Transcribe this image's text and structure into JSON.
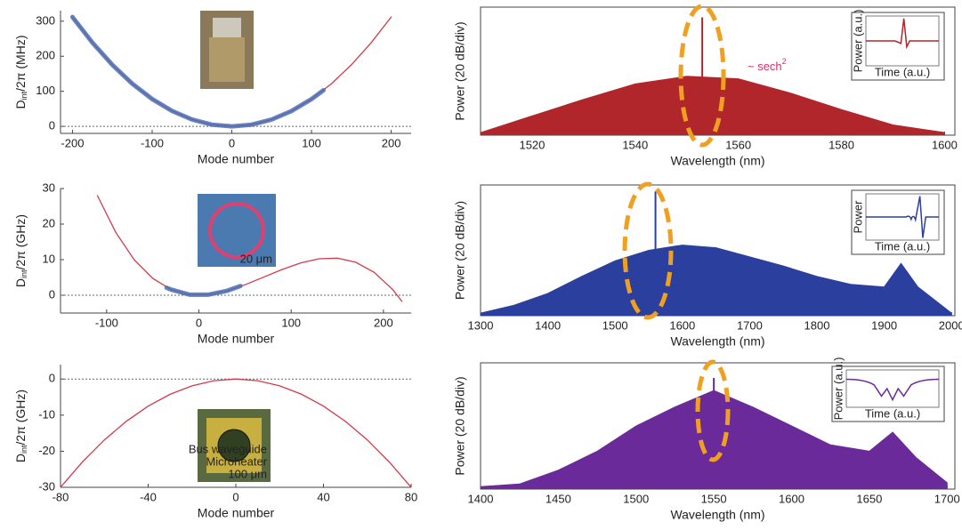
{
  "chart_data": [
    {
      "type": "line",
      "x_label": "Mode number",
      "y_label": {
        "text": "D",
        "sub": "int",
        "after": "/2π (MHz)"
      },
      "xlim": [
        -215,
        225
      ],
      "ylim": [
        -20,
        330
      ],
      "xticks": [
        -200,
        -100,
        0,
        100,
        200
      ],
      "yticks": [
        0,
        100,
        200,
        300
      ],
      "hline": 0,
      "series": [
        {
          "color": "#d43a4a",
          "style": "line",
          "x": [
            -200,
            -175,
            -150,
            -125,
            -100,
            -75,
            -50,
            -25,
            0,
            25,
            50,
            75,
            100,
            125,
            150,
            175,
            200
          ],
          "values": [
            312,
            238.9,
            175.5,
            121.9,
            78,
            43.9,
            19.5,
            4.9,
            0,
            4.9,
            19.5,
            43.9,
            78,
            121.9,
            175.5,
            238.9,
            312
          ]
        },
        {
          "color": "#4a6fb5",
          "style": "dots",
          "x": [
            -200,
            -175,
            -150,
            -125,
            -100,
            -75,
            -50,
            -25,
            0,
            25,
            50,
            75,
            100,
            115
          ],
          "values": [
            312,
            238.9,
            175.5,
            121.9,
            78,
            43.9,
            19.5,
            4.9,
            0,
            4.9,
            19.5,
            43.9,
            78,
            103
          ]
        }
      ],
      "inset": {
        "labels": []
      }
    },
    {
      "type": "area",
      "x_label": "Wavelength (nm)",
      "y_label": "Power (20 dB/div)",
      "xlim": [
        1510,
        1602
      ],
      "ylim": [
        0,
        100
      ],
      "xticks": [
        1520,
        1540,
        1560,
        1580,
        1600
      ],
      "color": "#b0262b",
      "series": [
        {
          "color": "#b0262b",
          "x": [
            1510,
            1520,
            1530,
            1540,
            1550,
            1560,
            1570,
            1580,
            1590,
            1600
          ],
          "values": [
            2,
            15,
            28,
            40,
            46,
            44,
            33,
            20,
            8,
            2
          ]
        }
      ],
      "pump": {
        "x": 1553,
        "value": 92
      },
      "annotation": {
        "text": "~ sech",
        "sup": "2"
      },
      "inset": {
        "y_label": "Power (a.u.)",
        "x_label": "Time (a.u.)"
      }
    },
    {
      "type": "line",
      "x_label": "Mode number",
      "y_label": {
        "text": "D",
        "sub": "int",
        "after": "/2π (GHz)"
      },
      "xlim": [
        -150,
        230
      ],
      "ylim": [
        -5,
        30
      ],
      "xticks": [
        -100,
        0,
        100,
        200
      ],
      "yticks": [
        0,
        10,
        20,
        30
      ],
      "hline": 0,
      "series": [
        {
          "color": "#d43a4a",
          "style": "line",
          "x": [
            -110,
            -90,
            -70,
            -50,
            -30,
            -10,
            10,
            30,
            50,
            70,
            90,
            110,
            130,
            150,
            170,
            190,
            210,
            220
          ],
          "values": [
            28.0,
            17.6,
            9.96,
            4.73,
            1.57,
            0.16,
            0.15,
            1.19,
            2.94,
            5.07,
            7.22,
            9.06,
            10.24,
            10.43,
            9.28,
            6.43,
            1.57,
            -1.72
          ]
        },
        {
          "color": "#4a6fb5",
          "style": "dots",
          "x": [
            -35,
            -30,
            -10,
            10,
            30,
            45
          ],
          "values": [
            2.1,
            1.57,
            0.16,
            0.15,
            1.19,
            2.6
          ]
        }
      ],
      "inset": {
        "labels": [
          "20 μm"
        ]
      }
    },
    {
      "type": "area",
      "x_label": "Wavelength (nm)",
      "y_label": "Power (20 dB/div)",
      "xlim": [
        1300,
        2005
      ],
      "ylim": [
        0,
        100
      ],
      "xticks": [
        1300,
        1400,
        1500,
        1600,
        1700,
        1800,
        1900,
        2000
      ],
      "color": "#2b3f9e",
      "series": [
        {
          "color": "#2b3f9e",
          "x": [
            1300,
            1350,
            1400,
            1450,
            1500,
            1550,
            1600,
            1650,
            1700,
            1750,
            1800,
            1850,
            1900,
            1925,
            1950,
            2000
          ],
          "values": [
            2,
            8,
            17,
            30,
            42,
            50,
            54,
            52,
            45,
            38,
            30,
            24,
            22,
            40,
            22,
            2
          ]
        }
      ],
      "pump": {
        "x": 1560,
        "value": 95
      },
      "inset": {
        "y_label": "Power",
        "x_label": "Time (a.u.)"
      }
    },
    {
      "type": "line",
      "x_label": "Mode number",
      "y_label": {
        "text": "D",
        "sub": "int",
        "after": "/2π (GHz)"
      },
      "xlim": [
        -80,
        80
      ],
      "ylim": [
        -30,
        4
      ],
      "xticks": [
        -80,
        -40,
        0,
        40,
        80
      ],
      "yticks": [
        0,
        -10,
        -20,
        -30
      ],
      "hline": 0,
      "series": [
        {
          "color": "#d43a4a",
          "style": "line",
          "x": [
            -80,
            -70,
            -60,
            -50,
            -40,
            -30,
            -20,
            -10,
            0,
            10,
            20,
            30,
            40,
            50,
            60,
            70,
            80
          ],
          "values": [
            -30,
            -22.97,
            -16.88,
            -11.72,
            -7.5,
            -4.22,
            -1.88,
            -0.47,
            0,
            -0.47,
            -1.88,
            -4.22,
            -7.5,
            -11.72,
            -16.88,
            -22.97,
            -30
          ]
        }
      ],
      "inset": {
        "labels": [
          "Bus waveguide",
          "Microheater",
          "100 μm"
        ]
      }
    },
    {
      "type": "area",
      "x_label": "Wavelength (nm)",
      "y_label": "Power (20 dB/div)",
      "xlim": [
        1400,
        1705
      ],
      "ylim": [
        0,
        100
      ],
      "xticks": [
        1400,
        1450,
        1500,
        1550,
        1600,
        1650,
        1700
      ],
      "color": "#6a2a9a",
      "series": [
        {
          "color": "#6a2a9a",
          "x": [
            1400,
            1425,
            1450,
            1475,
            1500,
            1525,
            1550,
            1575,
            1600,
            1625,
            1650,
            1665,
            1680,
            1700
          ],
          "values": [
            2,
            4,
            15,
            30,
            50,
            65,
            78,
            65,
            50,
            35,
            30,
            45,
            25,
            5
          ]
        }
      ],
      "pump": {
        "x": 1550,
        "value": 88
      },
      "inset": {
        "y_label": "Power (a.u.)",
        "x_label": "Time (a.u.)"
      }
    }
  ]
}
